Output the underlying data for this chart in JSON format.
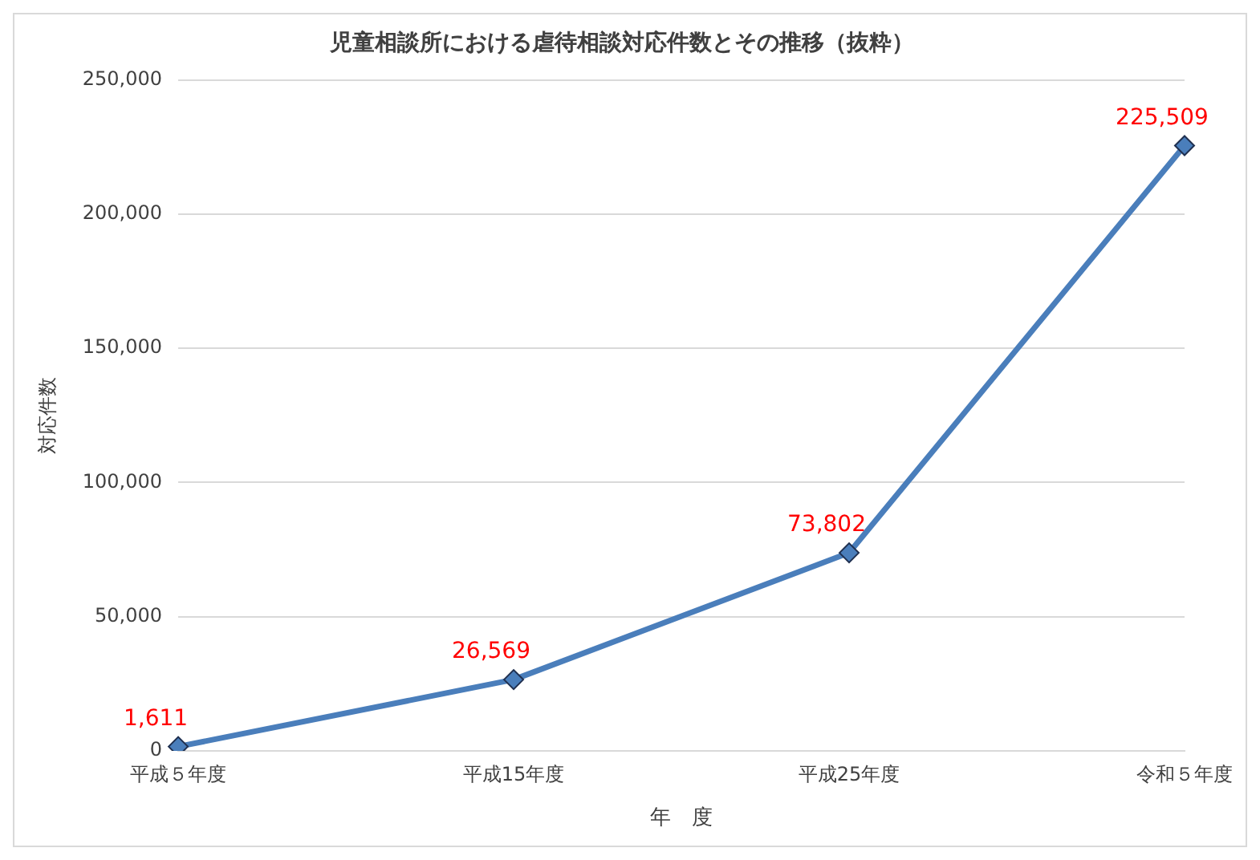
{
  "chart_data": {
    "type": "line",
    "title": "児童相談所における虐待相談対応件数とその推移（抜粋）",
    "xlabel": "年　度",
    "ylabel": "対応件数",
    "categories": [
      "平成５年度",
      "平成15年度",
      "平成25年度",
      "令和５年度"
    ],
    "series": [
      {
        "color": "#4a7ebb",
        "values": [
          1611,
          26569,
          73802,
          225509
        ],
        "value_labels": [
          "1,611",
          "26,569",
          "73,802",
          "225,509"
        ]
      }
    ],
    "ylim": [
      0,
      250000
    ],
    "yticks": [
      {
        "value": 0,
        "label": "0"
      },
      {
        "value": 50000,
        "label": "50,000"
      },
      {
        "value": 100000,
        "label": "100,000"
      },
      {
        "value": 150000,
        "label": "150,000"
      },
      {
        "value": 200000,
        "label": "200,000"
      },
      {
        "value": 250000,
        "label": "250,000"
      }
    ],
    "grid": "y",
    "legend": false,
    "marker": "diamond",
    "line_style": "solid"
  }
}
